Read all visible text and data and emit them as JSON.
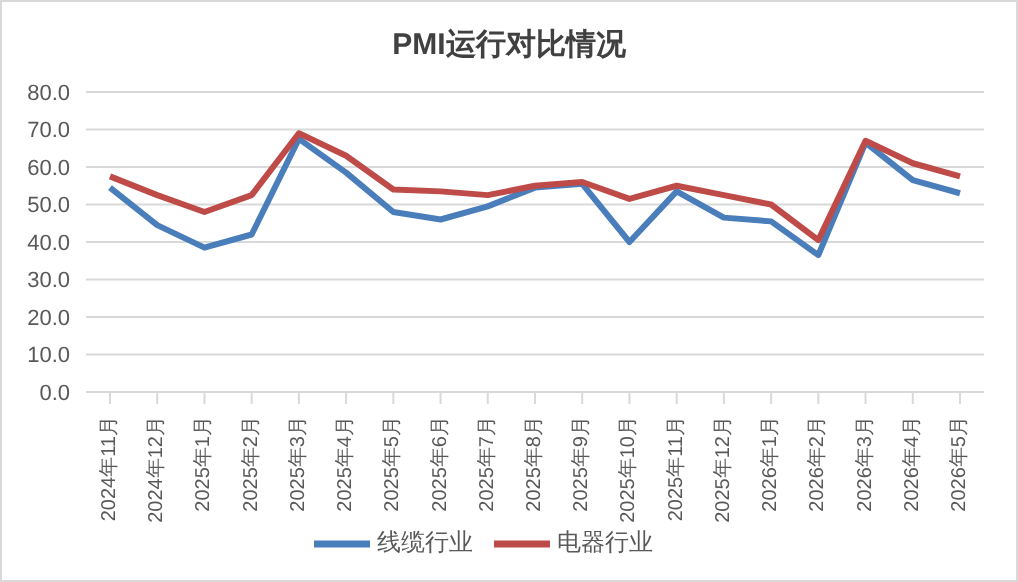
{
  "chart_data": {
    "type": "line",
    "title": "PMI运行对比情况",
    "categories": [
      "2024年11月",
      "2024年12月",
      "2025年1月",
      "2025年2月",
      "2025年3月",
      "2025年4月",
      "2025年5月",
      "2025年6月",
      "2025年7月",
      "2025年8月",
      "2025年9月",
      "2025年10月",
      "2025年11月",
      "2025年12月",
      "2026年1月",
      "2026年2月",
      "2026年3月",
      "2026年4月",
      "2026年5月"
    ],
    "series": [
      {
        "name": "线缆行业",
        "color": "#4a7ebb",
        "values": [
          54.5,
          44.5,
          38.5,
          42,
          67.5,
          58.5,
          48,
          46,
          49.5,
          54.5,
          55.5,
          40,
          53.5,
          46.5,
          45.5,
          36.5,
          66.5,
          56.5,
          53
        ]
      },
      {
        "name": "电器行业",
        "color": "#be4b48",
        "values": [
          57.5,
          52.5,
          48,
          52.5,
          69,
          63,
          54,
          53.5,
          52.5,
          55,
          56,
          51.5,
          55,
          52.5,
          50,
          40.5,
          67,
          61,
          57.5
        ]
      }
    ],
    "ylim": [
      0,
      80
    ],
    "yticks": [
      {
        "value": 0,
        "label": "0.0"
      },
      {
        "value": 10,
        "label": "10.0"
      },
      {
        "value": 20,
        "label": "20.0"
      },
      {
        "value": 30,
        "label": "30.0"
      },
      {
        "value": 40,
        "label": "40.0"
      },
      {
        "value": 50,
        "label": "50.0"
      },
      {
        "value": 60,
        "label": "60.0"
      },
      {
        "value": 70,
        "label": "70.0"
      },
      {
        "value": 80,
        "label": "80.0"
      }
    ],
    "grid": "y",
    "legend": "bottom",
    "marker": "none",
    "line_style": "solid"
  }
}
